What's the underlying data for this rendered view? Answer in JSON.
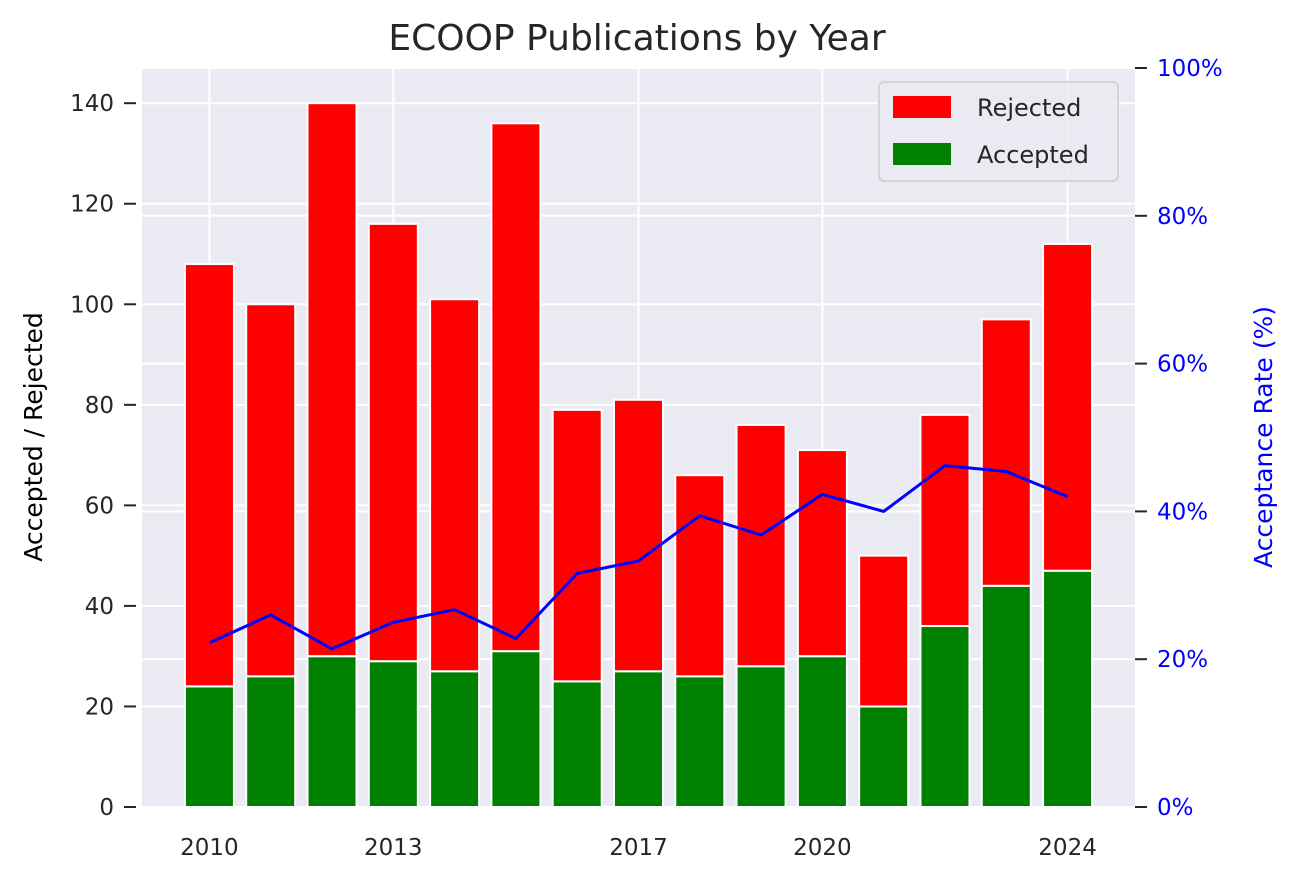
{
  "chart_data": {
    "type": "bar",
    "title": "ECOOP Publications by Year",
    "stacked": true,
    "x": [
      2010,
      2011,
      2012,
      2013,
      2014,
      2015,
      2016,
      2017,
      2018,
      2019,
      2020,
      2021,
      2022,
      2023,
      2024
    ],
    "xticks": [
      "2010",
      "2013",
      "2017",
      "2020",
      "2024"
    ],
    "ylabel": "Accepted / Rejected",
    "ylim": [
      0,
      147
    ],
    "yticks": [
      "0",
      "20",
      "40",
      "60",
      "80",
      "100",
      "120",
      "140"
    ],
    "y2label": "Acceptance Rate (%)",
    "y2lim": [
      0,
      100
    ],
    "y2ticks": [
      "0%",
      "20%",
      "40%",
      "60%",
      "80%",
      "100%"
    ],
    "series": [
      {
        "name": "Accepted",
        "color": "#008000",
        "values": [
          24,
          26,
          30,
          29,
          27,
          31,
          25,
          27,
          26,
          28,
          30,
          20,
          36,
          44,
          47
        ]
      },
      {
        "name": "Rejected",
        "color": "#ff0000",
        "values": [
          84,
          74,
          110,
          87,
          74,
          105,
          54,
          54,
          40,
          48,
          41,
          30,
          42,
          53,
          65
        ]
      },
      {
        "color": "#0000ff",
        "axis": "right",
        "values": [
          22.2,
          26.0,
          21.4,
          25.0,
          26.7,
          22.8,
          31.6,
          33.3,
          39.4,
          36.8,
          42.3,
          40.0,
          46.2,
          45.4,
          42.0
        ]
      }
    ],
    "legend": {
      "placement": "top-right",
      "entries": [
        "Rejected",
        "Accepted"
      ]
    },
    "grid": true,
    "right_axis_color": "#0000ff"
  }
}
